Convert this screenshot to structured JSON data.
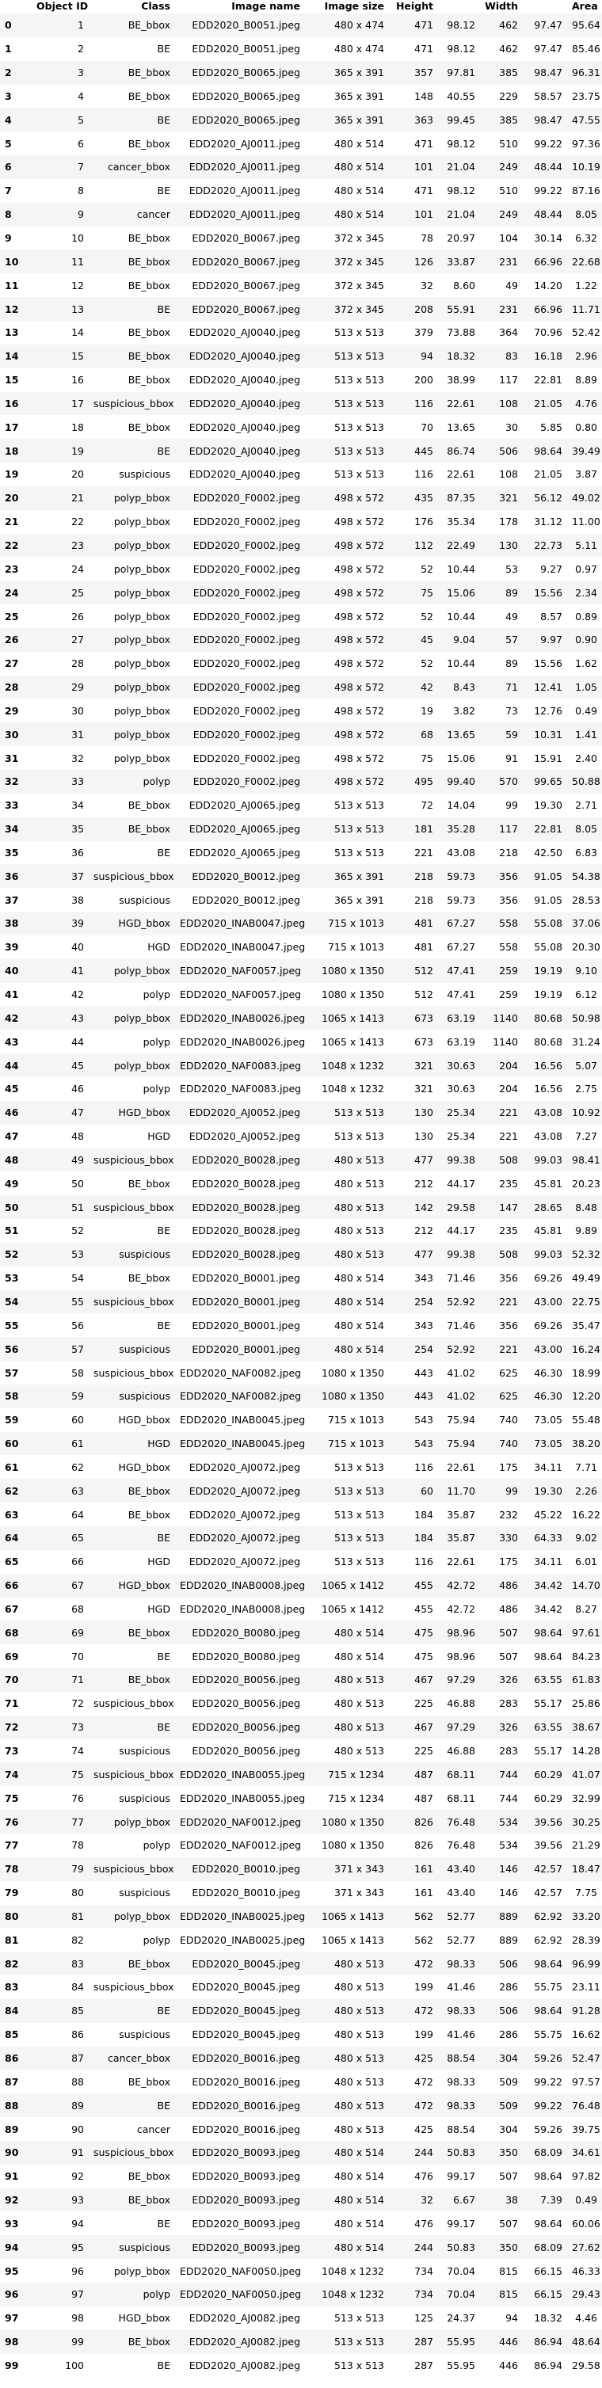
{
  "headers": [
    "",
    "Object ID",
    "Class",
    "Image name",
    "Image size",
    "Height",
    "Width",
    "Height",
    "Width",
    "Area"
  ],
  "header_labels": [
    "",
    "Object ID",
    "Class",
    "Image name",
    "Image size",
    "Height",
    "",
    "Width",
    "",
    "Area"
  ],
  "rows": [
    [
      "0",
      "1",
      "BE_bbox",
      "EDD2020_B0051.jpeg",
      "480 x 474",
      "471",
      "98.12",
      "462",
      "97.47",
      "95.64"
    ],
    [
      "1",
      "2",
      "BE",
      "EDD2020_B0051.jpeg",
      "480 x 474",
      "471",
      "98.12",
      "462",
      "97.47",
      "85.46"
    ],
    [
      "2",
      "3",
      "BE_bbox",
      "EDD2020_B0065.jpeg",
      "365 x 391",
      "357",
      "97.81",
      "385",
      "98.47",
      "96.31"
    ],
    [
      "3",
      "4",
      "BE_bbox",
      "EDD2020_B0065.jpeg",
      "365 x 391",
      "148",
      "40.55",
      "229",
      "58.57",
      "23.75"
    ],
    [
      "4",
      "5",
      "BE",
      "EDD2020_B0065.jpeg",
      "365 x 391",
      "363",
      "99.45",
      "385",
      "98.47",
      "47.55"
    ],
    [
      "5",
      "6",
      "BE_bbox",
      "EDD2020_AJ0011.jpeg",
      "480 x 514",
      "471",
      "98.12",
      "510",
      "99.22",
      "97.36"
    ],
    [
      "6",
      "7",
      "cancer_bbox",
      "EDD2020_AJ0011.jpeg",
      "480 x 514",
      "101",
      "21.04",
      "249",
      "48.44",
      "10.19"
    ],
    [
      "7",
      "8",
      "BE",
      "EDD2020_AJ0011.jpeg",
      "480 x 514",
      "471",
      "98.12",
      "510",
      "99.22",
      "87.16"
    ],
    [
      "8",
      "9",
      "cancer",
      "EDD2020_AJ0011.jpeg",
      "480 x 514",
      "101",
      "21.04",
      "249",
      "48.44",
      "8.05"
    ],
    [
      "9",
      "10",
      "BE_bbox",
      "EDD2020_B0067.jpeg",
      "372 x 345",
      "78",
      "20.97",
      "104",
      "30.14",
      "6.32"
    ],
    [
      "10",
      "11",
      "BE_bbox",
      "EDD2020_B0067.jpeg",
      "372 x 345",
      "126",
      "33.87",
      "231",
      "66.96",
      "22.68"
    ],
    [
      "11",
      "12",
      "BE_bbox",
      "EDD2020_B0067.jpeg",
      "372 x 345",
      "32",
      "8.60",
      "49",
      "14.20",
      "1.22"
    ],
    [
      "12",
      "13",
      "BE",
      "EDD2020_B0067.jpeg",
      "372 x 345",
      "208",
      "55.91",
      "231",
      "66.96",
      "11.71"
    ],
    [
      "13",
      "14",
      "BE_bbox",
      "EDD2020_AJ0040.jpeg",
      "513 x 513",
      "379",
      "73.88",
      "364",
      "70.96",
      "52.42"
    ],
    [
      "14",
      "15",
      "BE_bbox",
      "EDD2020_AJ0040.jpeg",
      "513 x 513",
      "94",
      "18.32",
      "83",
      "16.18",
      "2.96"
    ],
    [
      "15",
      "16",
      "BE_bbox",
      "EDD2020_AJ0040.jpeg",
      "513 x 513",
      "200",
      "38.99",
      "117",
      "22.81",
      "8.89"
    ],
    [
      "16",
      "17",
      "suspicious_bbox",
      "EDD2020_AJ0040.jpeg",
      "513 x 513",
      "116",
      "22.61",
      "108",
      "21.05",
      "4.76"
    ],
    [
      "17",
      "18",
      "BE_bbox",
      "EDD2020_AJ0040.jpeg",
      "513 x 513",
      "70",
      "13.65",
      "30",
      "5.85",
      "0.80"
    ],
    [
      "18",
      "19",
      "BE",
      "EDD2020_AJ0040.jpeg",
      "513 x 513",
      "445",
      "86.74",
      "506",
      "98.64",
      "39.49"
    ],
    [
      "19",
      "20",
      "suspicious",
      "EDD2020_AJ0040.jpeg",
      "513 x 513",
      "116",
      "22.61",
      "108",
      "21.05",
      "3.87"
    ],
    [
      "20",
      "21",
      "polyp_bbox",
      "EDD2020_F0002.jpeg",
      "498 x 572",
      "435",
      "87.35",
      "321",
      "56.12",
      "49.02"
    ],
    [
      "21",
      "22",
      "polyp_bbox",
      "EDD2020_F0002.jpeg",
      "498 x 572",
      "176",
      "35.34",
      "178",
      "31.12",
      "11.00"
    ],
    [
      "22",
      "23",
      "polyp_bbox",
      "EDD2020_F0002.jpeg",
      "498 x 572",
      "112",
      "22.49",
      "130",
      "22.73",
      "5.11"
    ],
    [
      "23",
      "24",
      "polyp_bbox",
      "EDD2020_F0002.jpeg",
      "498 x 572",
      "52",
      "10.44",
      "53",
      "9.27",
      "0.97"
    ],
    [
      "24",
      "25",
      "polyp_bbox",
      "EDD2020_F0002.jpeg",
      "498 x 572",
      "75",
      "15.06",
      "89",
      "15.56",
      "2.34"
    ],
    [
      "25",
      "26",
      "polyp_bbox",
      "EDD2020_F0002.jpeg",
      "498 x 572",
      "52",
      "10.44",
      "49",
      "8.57",
      "0.89"
    ],
    [
      "26",
      "27",
      "polyp_bbox",
      "EDD2020_F0002.jpeg",
      "498 x 572",
      "45",
      "9.04",
      "57",
      "9.97",
      "0.90"
    ],
    [
      "27",
      "28",
      "polyp_bbox",
      "EDD2020_F0002.jpeg",
      "498 x 572",
      "52",
      "10.44",
      "89",
      "15.56",
      "1.62"
    ],
    [
      "28",
      "29",
      "polyp_bbox",
      "EDD2020_F0002.jpeg",
      "498 x 572",
      "42",
      "8.43",
      "71",
      "12.41",
      "1.05"
    ],
    [
      "29",
      "30",
      "polyp_bbox",
      "EDD2020_F0002.jpeg",
      "498 x 572",
      "19",
      "3.82",
      "73",
      "12.76",
      "0.49"
    ],
    [
      "30",
      "31",
      "polyp_bbox",
      "EDD2020_F0002.jpeg",
      "498 x 572",
      "68",
      "13.65",
      "59",
      "10.31",
      "1.41"
    ],
    [
      "31",
      "32",
      "polyp_bbox",
      "EDD2020_F0002.jpeg",
      "498 x 572",
      "75",
      "15.06",
      "91",
      "15.91",
      "2.40"
    ],
    [
      "32",
      "33",
      "polyp",
      "EDD2020_F0002.jpeg",
      "498 x 572",
      "495",
      "99.40",
      "570",
      "99.65",
      "50.88"
    ],
    [
      "33",
      "34",
      "BE_bbox",
      "EDD2020_AJ0065.jpeg",
      "513 x 513",
      "72",
      "14.04",
      "99",
      "19.30",
      "2.71"
    ],
    [
      "34",
      "35",
      "BE_bbox",
      "EDD2020_AJ0065.jpeg",
      "513 x 513",
      "181",
      "35.28",
      "117",
      "22.81",
      "8.05"
    ],
    [
      "35",
      "36",
      "BE",
      "EDD2020_AJ0065.jpeg",
      "513 x 513",
      "221",
      "43.08",
      "218",
      "42.50",
      "6.83"
    ],
    [
      "36",
      "37",
      "suspicious_bbox",
      "EDD2020_B0012.jpeg",
      "365 x 391",
      "218",
      "59.73",
      "356",
      "91.05",
      "54.38"
    ],
    [
      "37",
      "38",
      "suspicious",
      "EDD2020_B0012.jpeg",
      "365 x 391",
      "218",
      "59.73",
      "356",
      "91.05",
      "28.53"
    ],
    [
      "38",
      "39",
      "HGD_bbox",
      "EDD2020_INAB0047.jpeg",
      "715 x 1013",
      "481",
      "67.27",
      "558",
      "55.08",
      "37.06"
    ],
    [
      "39",
      "40",
      "HGD",
      "EDD2020_INAB0047.jpeg",
      "715 x 1013",
      "481",
      "67.27",
      "558",
      "55.08",
      "20.30"
    ],
    [
      "40",
      "41",
      "polyp_bbox",
      "EDD2020_NAF0057.jpeg",
      "1080 x 1350",
      "512",
      "47.41",
      "259",
      "19.19",
      "9.10"
    ],
    [
      "41",
      "42",
      "polyp",
      "EDD2020_NAF0057.jpeg",
      "1080 x 1350",
      "512",
      "47.41",
      "259",
      "19.19",
      "6.12"
    ],
    [
      "42",
      "43",
      "polyp_bbox",
      "EDD2020_INAB0026.jpeg",
      "1065 x 1413",
      "673",
      "63.19",
      "1140",
      "80.68",
      "50.98"
    ],
    [
      "43",
      "44",
      "polyp",
      "EDD2020_INAB0026.jpeg",
      "1065 x 1413",
      "673",
      "63.19",
      "1140",
      "80.68",
      "31.24"
    ],
    [
      "44",
      "45",
      "polyp_bbox",
      "EDD2020_NAF0083.jpeg",
      "1048 x 1232",
      "321",
      "30.63",
      "204",
      "16.56",
      "5.07"
    ],
    [
      "45",
      "46",
      "polyp",
      "EDD2020_NAF0083.jpeg",
      "1048 x 1232",
      "321",
      "30.63",
      "204",
      "16.56",
      "2.75"
    ],
    [
      "46",
      "47",
      "HGD_bbox",
      "EDD2020_AJ0052.jpeg",
      "513 x 513",
      "130",
      "25.34",
      "221",
      "43.08",
      "10.92"
    ],
    [
      "47",
      "48",
      "HGD",
      "EDD2020_AJ0052.jpeg",
      "513 x 513",
      "130",
      "25.34",
      "221",
      "43.08",
      "7.27"
    ],
    [
      "48",
      "49",
      "suspicious_bbox",
      "EDD2020_B0028.jpeg",
      "480 x 513",
      "477",
      "99.38",
      "508",
      "99.03",
      "98.41"
    ],
    [
      "49",
      "50",
      "BE_bbox",
      "EDD2020_B0028.jpeg",
      "480 x 513",
      "212",
      "44.17",
      "235",
      "45.81",
      "20.23"
    ],
    [
      "50",
      "51",
      "suspicious_bbox",
      "EDD2020_B0028.jpeg",
      "480 x 513",
      "142",
      "29.58",
      "147",
      "28.65",
      "8.48"
    ],
    [
      "51",
      "52",
      "BE",
      "EDD2020_B0028.jpeg",
      "480 x 513",
      "212",
      "44.17",
      "235",
      "45.81",
      "9.89"
    ],
    [
      "52",
      "53",
      "suspicious",
      "EDD2020_B0028.jpeg",
      "480 x 513",
      "477",
      "99.38",
      "508",
      "99.03",
      "52.32"
    ],
    [
      "53",
      "54",
      "BE_bbox",
      "EDD2020_B0001.jpeg",
      "480 x 514",
      "343",
      "71.46",
      "356",
      "69.26",
      "49.49"
    ],
    [
      "54",
      "55",
      "suspicious_bbox",
      "EDD2020_B0001.jpeg",
      "480 x 514",
      "254",
      "52.92",
      "221",
      "43.00",
      "22.75"
    ],
    [
      "55",
      "56",
      "BE",
      "EDD2020_B0001.jpeg",
      "480 x 514",
      "343",
      "71.46",
      "356",
      "69.26",
      "35.47"
    ],
    [
      "56",
      "57",
      "suspicious",
      "EDD2020_B0001.jpeg",
      "480 x 514",
      "254",
      "52.92",
      "221",
      "43.00",
      "16.24"
    ],
    [
      "57",
      "58",
      "suspicious_bbox",
      "EDD2020_NAF0082.jpeg",
      "1080 x 1350",
      "443",
      "41.02",
      "625",
      "46.30",
      "18.99"
    ],
    [
      "58",
      "59",
      "suspicious",
      "EDD2020_NAF0082.jpeg",
      "1080 x 1350",
      "443",
      "41.02",
      "625",
      "46.30",
      "12.20"
    ],
    [
      "59",
      "60",
      "HGD_bbox",
      "EDD2020_INAB0045.jpeg",
      "715 x 1013",
      "543",
      "75.94",
      "740",
      "73.05",
      "55.48"
    ],
    [
      "60",
      "61",
      "HGD",
      "EDD2020_INAB0045.jpeg",
      "715 x 1013",
      "543",
      "75.94",
      "740",
      "73.05",
      "38.20"
    ],
    [
      "61",
      "62",
      "HGD_bbox",
      "EDD2020_AJ0072.jpeg",
      "513 x 513",
      "116",
      "22.61",
      "175",
      "34.11",
      "7.71"
    ],
    [
      "62",
      "63",
      "BE_bbox",
      "EDD2020_AJ0072.jpeg",
      "513 x 513",
      "60",
      "11.70",
      "99",
      "19.30",
      "2.26"
    ],
    [
      "63",
      "64",
      "BE_bbox",
      "EDD2020_AJ0072.jpeg",
      "513 x 513",
      "184",
      "35.87",
      "232",
      "45.22",
      "16.22"
    ],
    [
      "64",
      "65",
      "BE",
      "EDD2020_AJ0072.jpeg",
      "513 x 513",
      "184",
      "35.87",
      "330",
      "64.33",
      "9.02"
    ],
    [
      "65",
      "66",
      "HGD",
      "EDD2020_AJ0072.jpeg",
      "513 x 513",
      "116",
      "22.61",
      "175",
      "34.11",
      "6.01"
    ],
    [
      "66",
      "67",
      "HGD_bbox",
      "EDD2020_INAB0008.jpeg",
      "1065 x 1412",
      "455",
      "42.72",
      "486",
      "34.42",
      "14.70"
    ],
    [
      "67",
      "68",
      "HGD",
      "EDD2020_INAB0008.jpeg",
      "1065 x 1412",
      "455",
      "42.72",
      "486",
      "34.42",
      "8.27"
    ],
    [
      "68",
      "69",
      "BE_bbox",
      "EDD2020_B0080.jpeg",
      "480 x 514",
      "475",
      "98.96",
      "507",
      "98.64",
      "97.61"
    ],
    [
      "69",
      "70",
      "BE",
      "EDD2020_B0080.jpeg",
      "480 x 514",
      "475",
      "98.96",
      "507",
      "98.64",
      "84.23"
    ],
    [
      "70",
      "71",
      "BE_bbox",
      "EDD2020_B0056.jpeg",
      "480 x 513",
      "467",
      "97.29",
      "326",
      "63.55",
      "61.83"
    ],
    [
      "71",
      "72",
      "suspicious_bbox",
      "EDD2020_B0056.jpeg",
      "480 x 513",
      "225",
      "46.88",
      "283",
      "55.17",
      "25.86"
    ],
    [
      "72",
      "73",
      "BE",
      "EDD2020_B0056.jpeg",
      "480 x 513",
      "467",
      "97.29",
      "326",
      "63.55",
      "38.67"
    ],
    [
      "73",
      "74",
      "suspicious",
      "EDD2020_B0056.jpeg",
      "480 x 513",
      "225",
      "46.88",
      "283",
      "55.17",
      "14.28"
    ],
    [
      "74",
      "75",
      "suspicious_bbox",
      "EDD2020_INAB0055.jpeg",
      "715 x 1234",
      "487",
      "68.11",
      "744",
      "60.29",
      "41.07"
    ],
    [
      "75",
      "76",
      "suspicious",
      "EDD2020_INAB0055.jpeg",
      "715 x 1234",
      "487",
      "68.11",
      "744",
      "60.29",
      "32.99"
    ],
    [
      "76",
      "77",
      "polyp_bbox",
      "EDD2020_NAF0012.jpeg",
      "1080 x 1350",
      "826",
      "76.48",
      "534",
      "39.56",
      "30.25"
    ],
    [
      "77",
      "78",
      "polyp",
      "EDD2020_NAF0012.jpeg",
      "1080 x 1350",
      "826",
      "76.48",
      "534",
      "39.56",
      "21.29"
    ],
    [
      "78",
      "79",
      "suspicious_bbox",
      "EDD2020_B0010.jpeg",
      "371 x 343",
      "161",
      "43.40",
      "146",
      "42.57",
      "18.47"
    ],
    [
      "79",
      "80",
      "suspicious",
      "EDD2020_B0010.jpeg",
      "371 x 343",
      "161",
      "43.40",
      "146",
      "42.57",
      "7.75"
    ],
    [
      "80",
      "81",
      "polyp_bbox",
      "EDD2020_INAB0025.jpeg",
      "1065 x 1413",
      "562",
      "52.77",
      "889",
      "62.92",
      "33.20"
    ],
    [
      "81",
      "82",
      "polyp",
      "EDD2020_INAB0025.jpeg",
      "1065 x 1413",
      "562",
      "52.77",
      "889",
      "62.92",
      "28.39"
    ],
    [
      "82",
      "83",
      "BE_bbox",
      "EDD2020_B0045.jpeg",
      "480 x 513",
      "472",
      "98.33",
      "506",
      "98.64",
      "96.99"
    ],
    [
      "83",
      "84",
      "suspicious_bbox",
      "EDD2020_B0045.jpeg",
      "480 x 513",
      "199",
      "41.46",
      "286",
      "55.75",
      "23.11"
    ],
    [
      "84",
      "85",
      "BE",
      "EDD2020_B0045.jpeg",
      "480 x 513",
      "472",
      "98.33",
      "506",
      "98.64",
      "91.28"
    ],
    [
      "85",
      "86",
      "suspicious",
      "EDD2020_B0045.jpeg",
      "480 x 513",
      "199",
      "41.46",
      "286",
      "55.75",
      "16.62"
    ],
    [
      "86",
      "87",
      "cancer_bbox",
      "EDD2020_B0016.jpeg",
      "480 x 513",
      "425",
      "88.54",
      "304",
      "59.26",
      "52.47"
    ],
    [
      "87",
      "88",
      "BE_bbox",
      "EDD2020_B0016.jpeg",
      "480 x 513",
      "472",
      "98.33",
      "509",
      "99.22",
      "97.57"
    ],
    [
      "88",
      "89",
      "BE",
      "EDD2020_B0016.jpeg",
      "480 x 513",
      "472",
      "98.33",
      "509",
      "99.22",
      "76.48"
    ],
    [
      "89",
      "90",
      "cancer",
      "EDD2020_B0016.jpeg",
      "480 x 513",
      "425",
      "88.54",
      "304",
      "59.26",
      "39.75"
    ],
    [
      "90",
      "91",
      "suspicious_bbox",
      "EDD2020_B0093.jpeg",
      "480 x 514",
      "244",
      "50.83",
      "350",
      "68.09",
      "34.61"
    ],
    [
      "91",
      "92",
      "BE_bbox",
      "EDD2020_B0093.jpeg",
      "480 x 514",
      "476",
      "99.17",
      "507",
      "98.64",
      "97.82"
    ],
    [
      "92",
      "93",
      "BE_bbox",
      "EDD2020_B0093.jpeg",
      "480 x 514",
      "32",
      "6.67",
      "38",
      "7.39",
      "0.49"
    ],
    [
      "93",
      "94",
      "BE",
      "EDD2020_B0093.jpeg",
      "480 x 514",
      "476",
      "99.17",
      "507",
      "98.64",
      "60.06"
    ],
    [
      "94",
      "95",
      "suspicious",
      "EDD2020_B0093.jpeg",
      "480 x 514",
      "244",
      "50.83",
      "350",
      "68.09",
      "27.62"
    ],
    [
      "95",
      "96",
      "polyp_bbox",
      "EDD2020_NAF0050.jpeg",
      "1048 x 1232",
      "734",
      "70.04",
      "815",
      "66.15",
      "46.33"
    ],
    [
      "96",
      "97",
      "polyp",
      "EDD2020_NAF0050.jpeg",
      "1048 x 1232",
      "734",
      "70.04",
      "815",
      "66.15",
      "29.43"
    ],
    [
      "97",
      "98",
      "HGD_bbox",
      "EDD2020_AJ0082.jpeg",
      "513 x 513",
      "125",
      "24.37",
      "94",
      "18.32",
      "4.46"
    ],
    [
      "98",
      "99",
      "BE_bbox",
      "EDD2020_AJ0082.jpeg",
      "513 x 513",
      "287",
      "55.95",
      "446",
      "86.94",
      "48.64"
    ],
    [
      "99",
      "100",
      "BE",
      "EDD2020_AJ0082.jpeg",
      "513 x 513",
      "287",
      "55.95",
      "446",
      "86.94",
      "29.58"
    ]
  ]
}
